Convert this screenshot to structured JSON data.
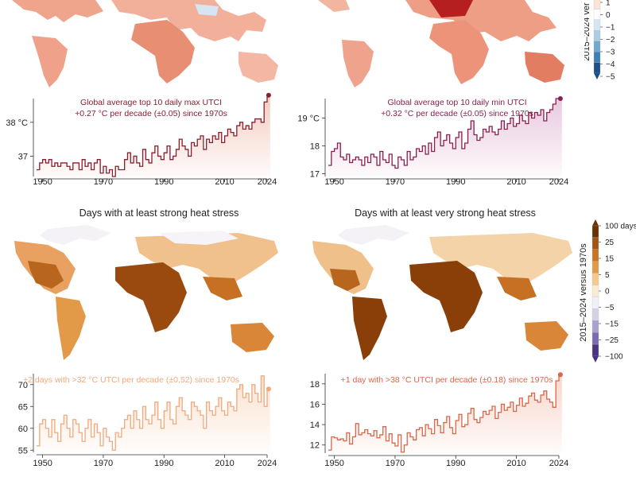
{
  "headings": {
    "strong": "Days with at least strong heat stress",
    "very_strong": "Days with at least very strong heat stress"
  },
  "legend_top": {
    "title": "2015–2024 ver",
    "labels": [
      "1",
      "0",
      "−1",
      "−2",
      "−3",
      "−4",
      "−5"
    ],
    "colors": [
      "#fbe3d6",
      "#ffffff",
      "#d3e6f1",
      "#a9cde4",
      "#6fa8d0",
      "#3f7fb7",
      "#1d4f8c"
    ]
  },
  "legend_bottom": {
    "title": "2015–2024 versus 1970s",
    "labels": [
      "100 days",
      "25",
      "15",
      "5",
      "0",
      "−5",
      "−15",
      "−25",
      "−100"
    ],
    "colors": [
      "#6b3200",
      "#a35512",
      "#c97422",
      "#e39a48",
      "#f5c98d",
      "#fbead2",
      "#f1f0f7",
      "#d5d2e8",
      "#a9a2cf",
      "#7a6ab3",
      "#4a3488"
    ]
  },
  "chart_data": [
    {
      "type": "line",
      "annotation": [
        "Global average top 10 daily max UTCI",
        "+0.27 °C per decade (±0.05) since 1970s"
      ],
      "color": "#8b1e2e",
      "fill": "#f3c9bd",
      "xlim": [
        1948,
        2024
      ],
      "ylim": [
        36.4,
        38.7
      ],
      "xticks": [
        1950,
        1970,
        1990,
        2010,
        2024
      ],
      "yticks": [
        {
          "v": 38,
          "label": "38 °C"
        },
        {
          "v": 37,
          "label": "37"
        }
      ],
      "x_start": 1948,
      "values": [
        36.6,
        36.8,
        36.9,
        36.8,
        36.9,
        36.7,
        36.8,
        36.7,
        36.8,
        36.8,
        36.7,
        36.6,
        36.8,
        36.8,
        36.6,
        36.9,
        36.7,
        36.8,
        36.6,
        36.8,
        36.9,
        36.5,
        36.7,
        36.5,
        36.6,
        36.4,
        36.7,
        36.6,
        36.6,
        36.9,
        37.1,
        36.8,
        37.0,
        36.8,
        36.7,
        37.2,
        36.9,
        36.8,
        37.1,
        37.3,
        37.0,
        36.9,
        37.1,
        37.3,
        36.9,
        37.0,
        37.2,
        37.5,
        37.3,
        37.2,
        37.0,
        37.4,
        37.3,
        37.5,
        37.6,
        37.2,
        37.5,
        37.4,
        37.6,
        37.5,
        37.7,
        37.4,
        37.6,
        37.8,
        37.7,
        37.6,
        37.9,
        38.0,
        37.8,
        37.9,
        37.8,
        38.0,
        38.1,
        38.1,
        38.0,
        38.6,
        38.8
      ]
    },
    {
      "type": "line",
      "annotation": [
        "Global average top 10 daily min UTCI",
        "+0.32 °C per decade (±0.05) since 1970s"
      ],
      "color": "#8b1e4e",
      "fill": "#e7c6dd",
      "xlim": [
        1948,
        2024
      ],
      "ylim": [
        16.9,
        19.7
      ],
      "xticks": [
        1950,
        1970,
        1990,
        2010,
        2024
      ],
      "yticks": [
        {
          "v": 19,
          "label": "19 °C"
        },
        {
          "v": 18,
          "label": "18"
        },
        {
          "v": 17,
          "label": "17"
        }
      ],
      "x_start": 1948,
      "values": [
        17.3,
        17.8,
        17.9,
        18.1,
        17.6,
        17.5,
        17.7,
        17.4,
        17.5,
        17.6,
        17.5,
        17.3,
        17.6,
        17.4,
        17.7,
        17.6,
        17.3,
        17.8,
        17.5,
        17.4,
        17.7,
        17.3,
        17.2,
        17.6,
        17.5,
        17.3,
        17.8,
        17.5,
        17.6,
        17.9,
        17.8,
        18.0,
        17.7,
        18.1,
        17.8,
        18.3,
        18.5,
        18.0,
        18.2,
        18.4,
        18.1,
        17.9,
        18.3,
        18.5,
        17.9,
        18.1,
        18.6,
        18.9,
        18.4,
        18.2,
        18.3,
        18.6,
        18.5,
        18.7,
        18.5,
        18.4,
        18.6,
        18.9,
        18.6,
        18.8,
        19.0,
        18.7,
        18.8,
        19.1,
        18.9,
        18.8,
        19.2,
        19.0,
        19.2,
        19.1,
        19.3,
        18.9,
        19.2,
        19.3,
        19.5,
        19.7,
        19.7
      ]
    },
    {
      "type": "line",
      "annotation": [
        "+2 days with >32 °C UTCI per decade (±0.52) since 1970s"
      ],
      "color": "#f0a97c",
      "fill": "#fbe0cc",
      "xlim": [
        1948,
        2024
      ],
      "ylim": [
        54.5,
        72.5
      ],
      "xticks": [
        1950,
        1970,
        1990,
        2010,
        2024
      ],
      "yticks": [
        {
          "v": 70,
          "label": "70"
        },
        {
          "v": 65,
          "label": "65"
        },
        {
          "v": 60,
          "label": "60"
        },
        {
          "v": 55,
          "label": "55"
        }
      ],
      "x_start": 1948,
      "values": [
        56,
        61,
        62,
        60,
        58,
        62,
        59,
        57,
        61,
        63,
        60,
        58,
        62,
        61,
        59,
        57,
        60,
        62,
        58,
        61,
        59,
        56,
        60,
        58,
        57,
        55,
        59,
        58,
        60,
        62,
        63,
        60,
        64,
        62,
        60,
        65,
        62,
        61,
        63,
        66,
        62,
        60,
        64,
        66,
        62,
        61,
        65,
        67,
        64,
        63,
        62,
        66,
        65,
        64,
        63,
        60,
        66,
        64,
        63,
        65,
        67,
        64,
        63,
        66,
        65,
        64,
        69,
        70,
        67,
        68,
        66,
        70,
        68,
        66,
        72,
        65,
        69
      ]
    },
    {
      "type": "line",
      "annotation": [
        "+1 day with >38 °C UTCI per decade (±0.18) since 1970s"
      ],
      "color": "#d9674a",
      "fill": "#f8d3c6",
      "xlim": [
        1948,
        2024
      ],
      "ylim": [
        11.2,
        19.0
      ],
      "xticks": [
        1950,
        1970,
        1990,
        2010,
        2024
      ],
      "yticks": [
        {
          "v": 18,
          "label": "18"
        },
        {
          "v": 16,
          "label": "16"
        },
        {
          "v": 14,
          "label": "14"
        },
        {
          "v": 12,
          "label": "12"
        }
      ],
      "x_start": 1948,
      "values": [
        11.5,
        12.8,
        12.7,
        12.5,
        12.6,
        12.4,
        13.2,
        12.1,
        12.8,
        14.1,
        13.0,
        13.2,
        13.5,
        13.1,
        12.9,
        13.4,
        12.7,
        13.0,
        13.8,
        12.4,
        13.1,
        12.2,
        11.9,
        13.0,
        11.3,
        12.0,
        13.2,
        12.8,
        12.5,
        13.5,
        13.7,
        12.9,
        14.0,
        13.6,
        13.1,
        14.5,
        13.9,
        13.2,
        14.2,
        14.8,
        13.7,
        13.1,
        14.4,
        15.0,
        13.8,
        14.0,
        15.1,
        15.6,
        14.5,
        14.2,
        14.7,
        15.3,
        15.0,
        15.4,
        15.8,
        14.6,
        15.2,
        16.0,
        15.4,
        15.7,
        16.2,
        15.3,
        15.9,
        16.6,
        15.8,
        16.1,
        16.8,
        17.1,
        16.4,
        16.2,
        16.9,
        17.3,
        16.5,
        16.2,
        15.7,
        18.3,
        18.9
      ]
    }
  ]
}
